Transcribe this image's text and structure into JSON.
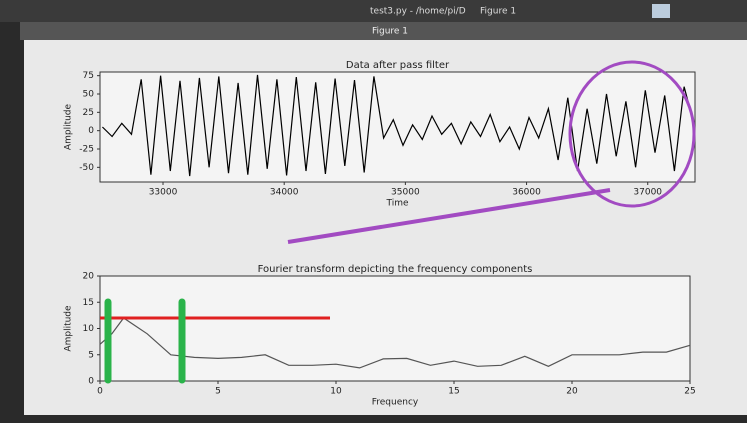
{
  "window": {
    "tabs": [
      "test3.py - /home/pi/D",
      "Figure 1"
    ],
    "title": "Figure 1"
  },
  "chart_data": [
    {
      "type": "line",
      "title": "Data after pass filter",
      "x_label": "Time",
      "y_label": "Amplitude",
      "color": "#000000",
      "x": [
        32500,
        32580,
        32660,
        32740,
        32820,
        32900,
        32980,
        33060,
        33140,
        33220,
        33300,
        33380,
        33460,
        33540,
        33620,
        33700,
        33780,
        33860,
        33940,
        34020,
        34100,
        34180,
        34260,
        34340,
        34420,
        34500,
        34580,
        34660,
        34740,
        34820,
        34900,
        34980,
        35060,
        35140,
        35220,
        35300,
        35380,
        35460,
        35540,
        35620,
        35700,
        35780,
        35860,
        35940,
        36020,
        36100,
        36180,
        36260,
        36340,
        36420,
        36500,
        36580,
        36660,
        36740,
        36820,
        36900,
        36980,
        37060,
        37140,
        37220,
        37300,
        37380
      ],
      "values": [
        5,
        -8,
        10,
        -5,
        70,
        -60,
        75,
        -55,
        68,
        -62,
        72,
        -50,
        74,
        -58,
        65,
        -60,
        76,
        -52,
        70,
        -61,
        73,
        -55,
        66,
        -59,
        71,
        -48,
        69,
        -57,
        74,
        -10,
        15,
        -20,
        8,
        -12,
        20,
        -5,
        10,
        -18,
        12,
        -8,
        22,
        -15,
        5,
        -25,
        18,
        -10,
        30,
        -40,
        45,
        -55,
        30,
        -45,
        50,
        -35,
        40,
        -50,
        55,
        -30,
        48,
        -55,
        60,
        10
      ],
      "xlim": [
        32480,
        37390
      ],
      "ylim": [
        -70,
        80
      ],
      "xticks": [
        33000,
        34000,
        35000,
        36000,
        37000
      ],
      "yticks": [
        -50,
        -25,
        0,
        25,
        50,
        75
      ]
    },
    {
      "type": "line",
      "title": "Fourier transform depicting the frequency components",
      "x_label": "Frequency",
      "y_label": "Amplitude",
      "color": "#555555",
      "x": [
        0,
        0.5,
        1,
        2,
        3,
        4,
        5,
        6,
        7,
        8,
        9,
        10,
        11,
        12,
        13,
        14,
        15,
        16,
        17,
        18,
        19,
        20,
        21,
        22,
        23,
        24,
        25
      ],
      "values": [
        7,
        9,
        12,
        9,
        5,
        4.5,
        4.3,
        4.5,
        5,
        3,
        3,
        3.2,
        2.5,
        4.2,
        4.3,
        3,
        3.8,
        2.8,
        3,
        4.7,
        2.8,
        5,
        5,
        5,
        5.5,
        5.5,
        6.8
      ],
      "xlim": [
        0,
        25
      ],
      "ylim": [
        0,
        20
      ],
      "xticks": [
        0,
        5,
        10,
        15,
        20,
        25
      ],
      "yticks": [
        0,
        5,
        10,
        15,
        20
      ]
    }
  ]
}
